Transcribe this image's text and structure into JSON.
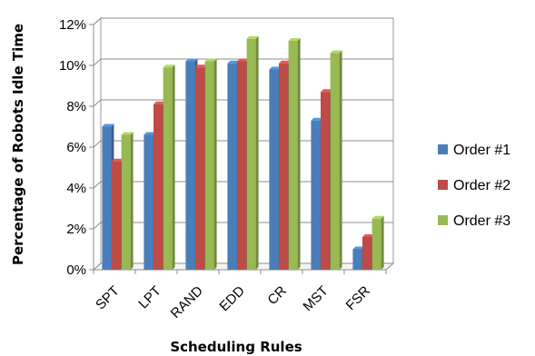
{
  "chart_data": {
    "type": "bar",
    "title": "",
    "xlabel": "Scheduling Rules",
    "ylabel": "Percentage of Robots Idle Time",
    "categories": [
      "SPT",
      "LPT",
      "RAND",
      "EDD",
      "CR",
      "MST",
      "FSR"
    ],
    "series": [
      {
        "name": "Order #1",
        "color": "#4a7ebb",
        "values": [
          7.0,
          6.6,
          10.2,
          10.1,
          9.8,
          7.3,
          1.0
        ]
      },
      {
        "name": "Order #2",
        "color": "#be4b48",
        "values": [
          5.3,
          8.1,
          9.9,
          10.2,
          10.1,
          8.7,
          1.6
        ]
      },
      {
        "name": "Order #3",
        "color": "#98b954",
        "values": [
          6.6,
          9.9,
          10.2,
          11.3,
          11.2,
          10.6,
          2.5
        ]
      }
    ],
    "yticks": [
      "0%",
      "2%",
      "4%",
      "6%",
      "8%",
      "10%",
      "12%"
    ],
    "ylim": [
      0,
      12
    ],
    "grid": true,
    "legend": "right",
    "style": "3d-clustered-column"
  }
}
